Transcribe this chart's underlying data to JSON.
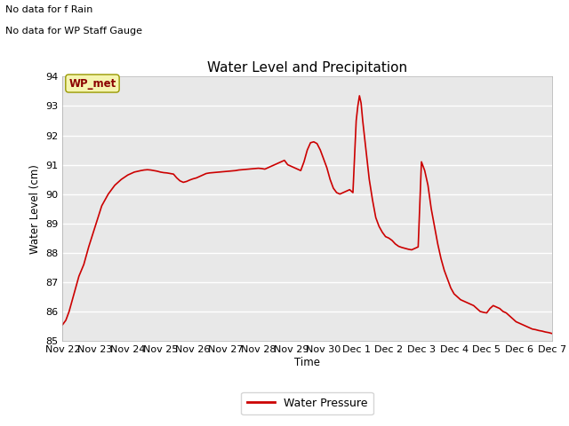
{
  "title": "Water Level and Precipitation",
  "ylabel": "Water Level (cm)",
  "xlabel": "Time",
  "legend_label": "Water Pressure",
  "line_color": "#cc0000",
  "ylim": [
    85.0,
    94.0
  ],
  "yticks": [
    85.0,
    86.0,
    87.0,
    88.0,
    89.0,
    90.0,
    91.0,
    92.0,
    93.0,
    94.0
  ],
  "plot_bg": "#e8e8e8",
  "annotation1": "No data for f Rain",
  "annotation2": "No data for WP Staff Gauge",
  "box_label": "WP_met",
  "time_data": [
    0.0,
    0.1,
    0.2,
    0.35,
    0.5,
    0.65,
    0.8,
    1.0,
    1.2,
    1.4,
    1.6,
    1.8,
    2.0,
    2.2,
    2.4,
    2.5,
    2.6,
    2.7,
    2.8,
    2.9,
    3.0,
    3.1,
    3.2,
    3.3,
    3.4,
    3.5,
    3.6,
    3.7,
    3.8,
    3.9,
    4.0,
    4.1,
    4.2,
    4.3,
    4.4,
    4.5,
    4.6,
    4.7,
    4.8,
    4.9,
    5.0,
    5.1,
    5.2,
    5.3,
    5.4,
    5.5,
    5.6,
    5.7,
    5.8,
    5.9,
    6.0,
    6.1,
    6.2,
    6.3,
    6.4,
    6.5,
    6.6,
    6.7,
    6.8,
    6.9,
    7.0,
    7.1,
    7.2,
    7.3,
    7.4,
    7.5,
    7.6,
    7.7,
    7.8,
    7.9,
    8.0,
    8.1,
    8.2,
    8.3,
    8.4,
    8.5,
    8.6,
    8.7,
    8.8,
    8.9,
    9.0,
    9.05,
    9.1,
    9.15,
    9.2,
    9.3,
    9.4,
    9.5,
    9.6,
    9.7,
    9.8,
    9.9,
    10.0,
    10.1,
    10.2,
    10.3,
    10.4,
    10.5,
    10.6,
    10.7,
    10.8,
    10.9,
    11.0,
    11.1,
    11.2,
    11.3,
    11.4,
    11.5,
    11.6,
    11.7,
    11.8,
    11.9,
    12.0,
    12.1,
    12.2,
    12.3,
    12.4,
    12.5,
    12.6,
    12.7,
    12.8,
    12.9,
    13.0,
    13.1,
    13.2,
    13.3,
    13.4,
    13.5,
    13.6,
    13.7,
    13.8,
    13.9,
    14.0,
    14.1,
    14.2,
    14.3,
    14.4,
    14.5,
    14.6,
    14.7,
    14.8,
    14.9,
    15.0
  ],
  "water_data": [
    85.55,
    85.7,
    86.0,
    86.6,
    87.2,
    87.6,
    88.2,
    88.9,
    89.6,
    90.0,
    90.3,
    90.5,
    90.65,
    90.75,
    90.8,
    90.82,
    90.83,
    90.82,
    90.8,
    90.78,
    90.75,
    90.73,
    90.72,
    90.7,
    90.68,
    90.55,
    90.45,
    90.4,
    90.43,
    90.48,
    90.52,
    90.55,
    90.6,
    90.65,
    90.7,
    90.72,
    90.73,
    90.74,
    90.75,
    90.76,
    90.77,
    90.78,
    90.79,
    90.8,
    90.82,
    90.83,
    90.84,
    90.85,
    90.86,
    90.87,
    90.88,
    90.87,
    90.85,
    90.9,
    90.95,
    91.0,
    91.05,
    91.1,
    91.15,
    91.0,
    90.95,
    90.9,
    90.85,
    90.8,
    91.1,
    91.5,
    91.75,
    91.78,
    91.72,
    91.5,
    91.2,
    90.9,
    90.5,
    90.2,
    90.05,
    90.0,
    90.05,
    90.1,
    90.15,
    90.05,
    92.5,
    93.0,
    93.35,
    93.1,
    92.5,
    91.5,
    90.5,
    89.8,
    89.2,
    88.9,
    88.7,
    88.55,
    88.5,
    88.42,
    88.3,
    88.22,
    88.18,
    88.15,
    88.12,
    88.1,
    88.15,
    88.2,
    91.1,
    90.8,
    90.3,
    89.5,
    88.9,
    88.3,
    87.8,
    87.4,
    87.1,
    86.8,
    86.6,
    86.5,
    86.4,
    86.35,
    86.3,
    86.25,
    86.2,
    86.1,
    86.0,
    85.97,
    85.95,
    86.1,
    86.2,
    86.15,
    86.1,
    86.0,
    85.95,
    85.85,
    85.75,
    85.65,
    85.6,
    85.55,
    85.5,
    85.45,
    85.4,
    85.38,
    85.35,
    85.33,
    85.3,
    85.28,
    85.25
  ],
  "xtick_positions": [
    0,
    1,
    2,
    3,
    4,
    5,
    6,
    7,
    8,
    9,
    10,
    11,
    12,
    13,
    14,
    15
  ],
  "xtick_labels": [
    "Nov 22",
    "Nov 23",
    "Nov 24",
    "Nov 25",
    "Nov 26",
    "Nov 27",
    "Nov 28",
    "Nov 29",
    "Nov 30",
    "Dec 1",
    "Dec 2",
    "Dec 3",
    "Dec 4",
    "Dec 5",
    "Dec 6",
    "Dec 7"
  ]
}
